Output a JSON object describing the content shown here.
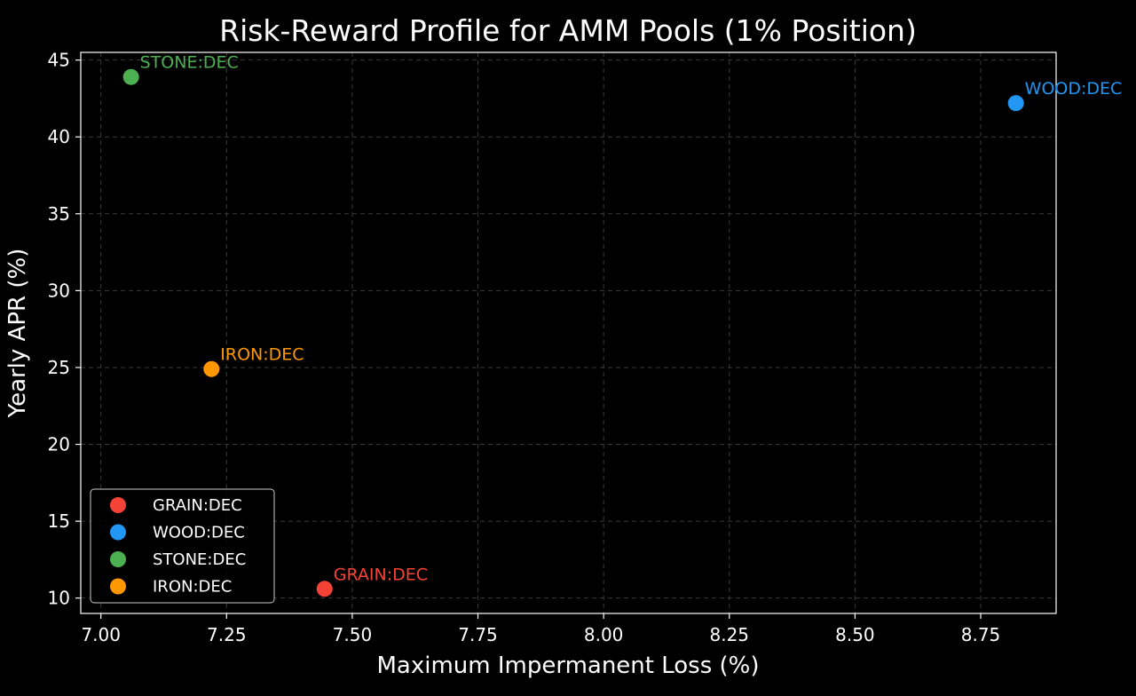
{
  "chart_data": {
    "type": "scatter",
    "title": "Risk-Reward Profile for AMM Pools (1% Position)",
    "xlabel": "Maximum Impermanent Loss (%)",
    "ylabel": "Yearly APR (%)",
    "xlim": [
      6.96,
      8.9
    ],
    "ylim": [
      9.0,
      45.5
    ],
    "xticks": [
      7.0,
      7.25,
      7.5,
      7.75,
      8.0,
      8.25,
      8.5,
      8.75
    ],
    "xtick_labels": [
      "7.00",
      "7.25",
      "7.50",
      "7.75",
      "8.00",
      "8.25",
      "8.50",
      "8.75"
    ],
    "yticks": [
      10,
      15,
      20,
      25,
      30,
      35,
      40,
      45
    ],
    "ytick_labels": [
      "10",
      "15",
      "20",
      "25",
      "30",
      "35",
      "40",
      "45"
    ],
    "grid": true,
    "legend_position": "lower-left",
    "series": [
      {
        "name": "GRAIN:DEC",
        "color": "#f44336",
        "x": 7.445,
        "y": 10.6,
        "label": "GRAIN:DEC"
      },
      {
        "name": "WOOD:DEC",
        "color": "#2196f3",
        "x": 8.82,
        "y": 42.2,
        "label": "WOOD:DEC"
      },
      {
        "name": "STONE:DEC",
        "color": "#4caf50",
        "x": 7.06,
        "y": 43.9,
        "label": "STONE:DEC"
      },
      {
        "name": "IRON:DEC",
        "color": "#ff9800",
        "x": 7.22,
        "y": 24.9,
        "label": "IRON:DEC"
      }
    ]
  }
}
